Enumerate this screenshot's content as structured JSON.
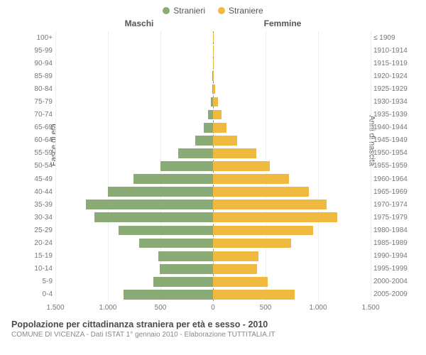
{
  "type": "population-pyramid",
  "legend": {
    "male": "Stranieri",
    "female": "Straniere"
  },
  "headers": {
    "left": "Maschi",
    "right": "Femmine"
  },
  "axis_titles": {
    "left": "Fasce di età",
    "right": "Anni di nascita"
  },
  "colors": {
    "male": "#8aab75",
    "female": "#f0b93f",
    "grid": "#eeeeee",
    "center": "#888888",
    "background": "#ffffff",
    "text": "#555555",
    "tick_text": "#777777"
  },
  "x_axis": {
    "max": 1500,
    "ticks": [
      1500,
      1000,
      500,
      0,
      500,
      1000,
      1500
    ],
    "tick_labels": [
      "1.500",
      "1.000",
      "500",
      "0",
      "500",
      "1.000",
      "1.500"
    ]
  },
  "rows": [
    {
      "age": "100+",
      "birth": "≤ 1909",
      "male": 0,
      "female": 2
    },
    {
      "age": "95-99",
      "birth": "1910-1914",
      "male": 1,
      "female": 3
    },
    {
      "age": "90-94",
      "birth": "1915-1919",
      "male": 2,
      "female": 5
    },
    {
      "age": "85-89",
      "birth": "1920-1924",
      "male": 5,
      "female": 10
    },
    {
      "age": "80-84",
      "birth": "1925-1929",
      "male": 10,
      "female": 20
    },
    {
      "age": "75-79",
      "birth": "1930-1934",
      "male": 20,
      "female": 45
    },
    {
      "age": "70-74",
      "birth": "1935-1939",
      "male": 50,
      "female": 80
    },
    {
      "age": "65-69",
      "birth": "1940-1944",
      "male": 90,
      "female": 130
    },
    {
      "age": "60-64",
      "birth": "1945-1949",
      "male": 170,
      "female": 230
    },
    {
      "age": "55-59",
      "birth": "1950-1954",
      "male": 330,
      "female": 410
    },
    {
      "age": "50-54",
      "birth": "1955-1959",
      "male": 500,
      "female": 540
    },
    {
      "age": "45-49",
      "birth": "1960-1964",
      "male": 760,
      "female": 720
    },
    {
      "age": "40-44",
      "birth": "1965-1969",
      "male": 1000,
      "female": 910
    },
    {
      "age": "35-39",
      "birth": "1970-1974",
      "male": 1210,
      "female": 1080
    },
    {
      "age": "30-34",
      "birth": "1975-1979",
      "male": 1130,
      "female": 1180
    },
    {
      "age": "25-29",
      "birth": "1980-1984",
      "male": 900,
      "female": 950
    },
    {
      "age": "20-24",
      "birth": "1985-1989",
      "male": 700,
      "female": 740
    },
    {
      "age": "15-19",
      "birth": "1990-1994",
      "male": 520,
      "female": 430
    },
    {
      "age": "10-14",
      "birth": "1995-1999",
      "male": 510,
      "female": 420
    },
    {
      "age": "5-9",
      "birth": "2000-2004",
      "male": 570,
      "female": 520
    },
    {
      "age": "0-4",
      "birth": "2005-2009",
      "male": 850,
      "female": 780
    }
  ],
  "footer": {
    "title": "Popolazione per cittadinanza straniera per età e sesso - 2010",
    "subtitle": "COMUNE DI VICENZA - Dati ISTAT 1° gennaio 2010 - Elaborazione TUTTITALIA.IT"
  },
  "style": {
    "bar_height_pct": 76,
    "font_family": "Arial",
    "title_fontsize": 12.5,
    "tick_fontsize": 10,
    "legend_fontsize": 12
  }
}
